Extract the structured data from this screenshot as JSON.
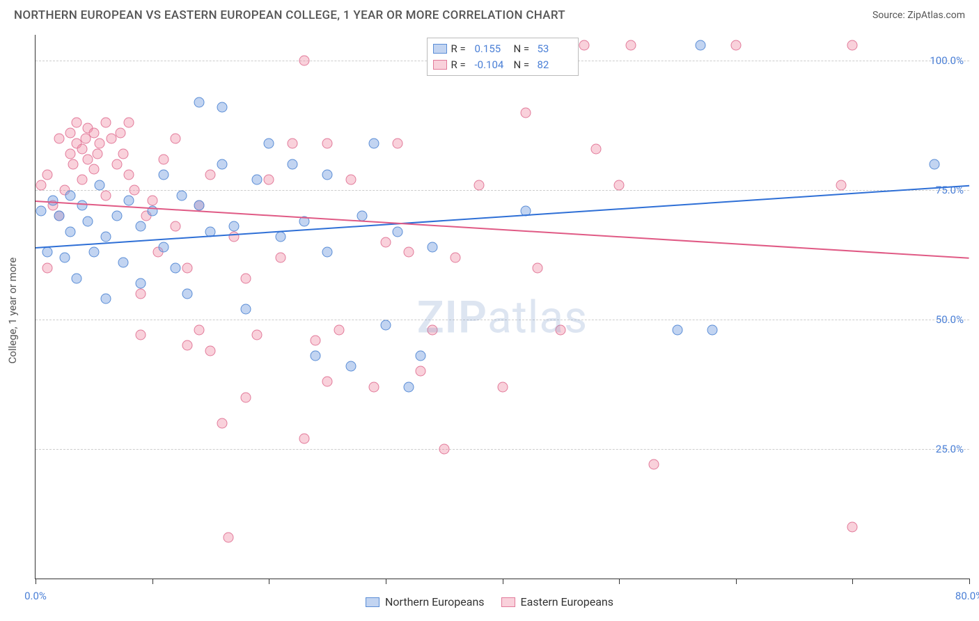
{
  "header": {
    "title": "NORTHERN EUROPEAN VS EASTERN EUROPEAN COLLEGE, 1 YEAR OR MORE CORRELATION CHART",
    "source_label": "Source:",
    "source_value": "ZipAtlas.com"
  },
  "chart": {
    "type": "scatter",
    "background_color": "#ffffff",
    "grid_color": "#cccccc",
    "axis_color": "#333333",
    "xlim": [
      0,
      80
    ],
    "ylim": [
      0,
      105
    ],
    "x_ticks": [
      0,
      10,
      20,
      30,
      40,
      50,
      60,
      70,
      80
    ],
    "x_tick_labels": {
      "0": "0.0%",
      "80": "80.0%"
    },
    "y_gridlines": [
      25,
      50,
      75,
      100
    ],
    "y_tick_labels": {
      "25": "25.0%",
      "50": "50.0%",
      "75": "75.0%",
      "100": "100.0%"
    },
    "y_axis_label": "College, 1 year or more",
    "label_fontsize": 15,
    "tick_color": "#4a7fd6",
    "watermark": "ZIPatlas",
    "series": [
      {
        "name": "Northern Europeans",
        "marker_fill": "rgba(120,160,225,0.45)",
        "marker_stroke": "#5a8dd6",
        "marker_size": 15,
        "trend": {
          "y_at_x0": 64,
          "y_at_xmax": 76,
          "color": "#2e6fd6"
        },
        "legend_r": "0.155",
        "legend_n": "53",
        "points": [
          [
            0.5,
            71
          ],
          [
            1,
            63
          ],
          [
            1.5,
            73
          ],
          [
            2,
            70
          ],
          [
            2.5,
            62
          ],
          [
            3,
            67
          ],
          [
            3,
            74
          ],
          [
            3.5,
            58
          ],
          [
            4,
            72
          ],
          [
            4.5,
            69
          ],
          [
            5,
            63
          ],
          [
            5.5,
            76
          ],
          [
            6,
            66
          ],
          [
            6,
            54
          ],
          [
            7,
            70
          ],
          [
            7.5,
            61
          ],
          [
            8,
            73
          ],
          [
            9,
            57
          ],
          [
            9,
            68
          ],
          [
            10,
            71
          ],
          [
            11,
            64
          ],
          [
            11,
            78
          ],
          [
            12,
            60
          ],
          [
            12.5,
            74
          ],
          [
            13,
            55
          ],
          [
            14,
            72
          ],
          [
            14,
            92
          ],
          [
            15,
            67
          ],
          [
            16,
            80
          ],
          [
            16,
            91
          ],
          [
            17,
            68
          ],
          [
            18,
            52
          ],
          [
            19,
            77
          ],
          [
            20,
            84
          ],
          [
            21,
            66
          ],
          [
            22,
            80
          ],
          [
            23,
            69
          ],
          [
            24,
            43
          ],
          [
            25,
            63
          ],
          [
            25,
            78
          ],
          [
            27,
            41
          ],
          [
            28,
            70
          ],
          [
            29,
            84
          ],
          [
            30,
            49
          ],
          [
            31,
            67
          ],
          [
            32,
            37
          ],
          [
            33,
            43
          ],
          [
            34,
            64
          ],
          [
            42,
            71
          ],
          [
            55,
            48
          ],
          [
            57,
            103
          ],
          [
            58,
            48
          ],
          [
            77,
            80
          ]
        ]
      },
      {
        "name": "Eastern Europeans",
        "marker_fill": "rgba(240,140,165,0.40)",
        "marker_stroke": "#e27a9a",
        "marker_size": 15,
        "trend": {
          "y_at_x0": 73,
          "y_at_xmax": 62,
          "color": "#e05a85"
        },
        "legend_r": "-0.104",
        "legend_n": "82",
        "points": [
          [
            0.5,
            76
          ],
          [
            1,
            78
          ],
          [
            1,
            60
          ],
          [
            1.5,
            72
          ],
          [
            2,
            85
          ],
          [
            2,
            70
          ],
          [
            2.5,
            75
          ],
          [
            3,
            82
          ],
          [
            3,
            86
          ],
          [
            3.2,
            80
          ],
          [
            3.5,
            88
          ],
          [
            3.5,
            84
          ],
          [
            4,
            77
          ],
          [
            4,
            83
          ],
          [
            4.3,
            85
          ],
          [
            4.5,
            87
          ],
          [
            4.5,
            81
          ],
          [
            5,
            79
          ],
          [
            5,
            86
          ],
          [
            5.3,
            82
          ],
          [
            5.5,
            84
          ],
          [
            6,
            88
          ],
          [
            6,
            74
          ],
          [
            6.5,
            85
          ],
          [
            7,
            80
          ],
          [
            7.3,
            86
          ],
          [
            7.5,
            82
          ],
          [
            8,
            78
          ],
          [
            8,
            88
          ],
          [
            8.5,
            75
          ],
          [
            9,
            55
          ],
          [
            9,
            47
          ],
          [
            9.5,
            70
          ],
          [
            10,
            73
          ],
          [
            10.5,
            63
          ],
          [
            11,
            81
          ],
          [
            12,
            68
          ],
          [
            12,
            85
          ],
          [
            13,
            45
          ],
          [
            13,
            60
          ],
          [
            14,
            48
          ],
          [
            14,
            72
          ],
          [
            15,
            78
          ],
          [
            15,
            44
          ],
          [
            16,
            30
          ],
          [
            16.5,
            8
          ],
          [
            17,
            66
          ],
          [
            18,
            58
          ],
          [
            18,
            35
          ],
          [
            19,
            47
          ],
          [
            20,
            77
          ],
          [
            21,
            62
          ],
          [
            22,
            84
          ],
          [
            23,
            100
          ],
          [
            23,
            27
          ],
          [
            24,
            46
          ],
          [
            25,
            84
          ],
          [
            25,
            38
          ],
          [
            26,
            48
          ],
          [
            27,
            77
          ],
          [
            29,
            37
          ],
          [
            30,
            65
          ],
          [
            31,
            84
          ],
          [
            32,
            63
          ],
          [
            33,
            40
          ],
          [
            34,
            48
          ],
          [
            35,
            25
          ],
          [
            36,
            62
          ],
          [
            38,
            76
          ],
          [
            40,
            37
          ],
          [
            42,
            90
          ],
          [
            43,
            60
          ],
          [
            45,
            48
          ],
          [
            47,
            103
          ],
          [
            48,
            83
          ],
          [
            50,
            76
          ],
          [
            51,
            103
          ],
          [
            53,
            22
          ],
          [
            60,
            103
          ],
          [
            69,
            76
          ],
          [
            70,
            103
          ],
          [
            70,
            10
          ]
        ]
      }
    ],
    "legend_top": {
      "r_label": "R  =",
      "n_label": "N  ="
    },
    "legend_bottom": [
      {
        "swatch_fill": "rgba(120,160,225,0.45)",
        "swatch_stroke": "#5a8dd6",
        "label": "Northern Europeans"
      },
      {
        "swatch_fill": "rgba(240,140,165,0.40)",
        "swatch_stroke": "#e27a9a",
        "label": "Eastern Europeans"
      }
    ]
  }
}
